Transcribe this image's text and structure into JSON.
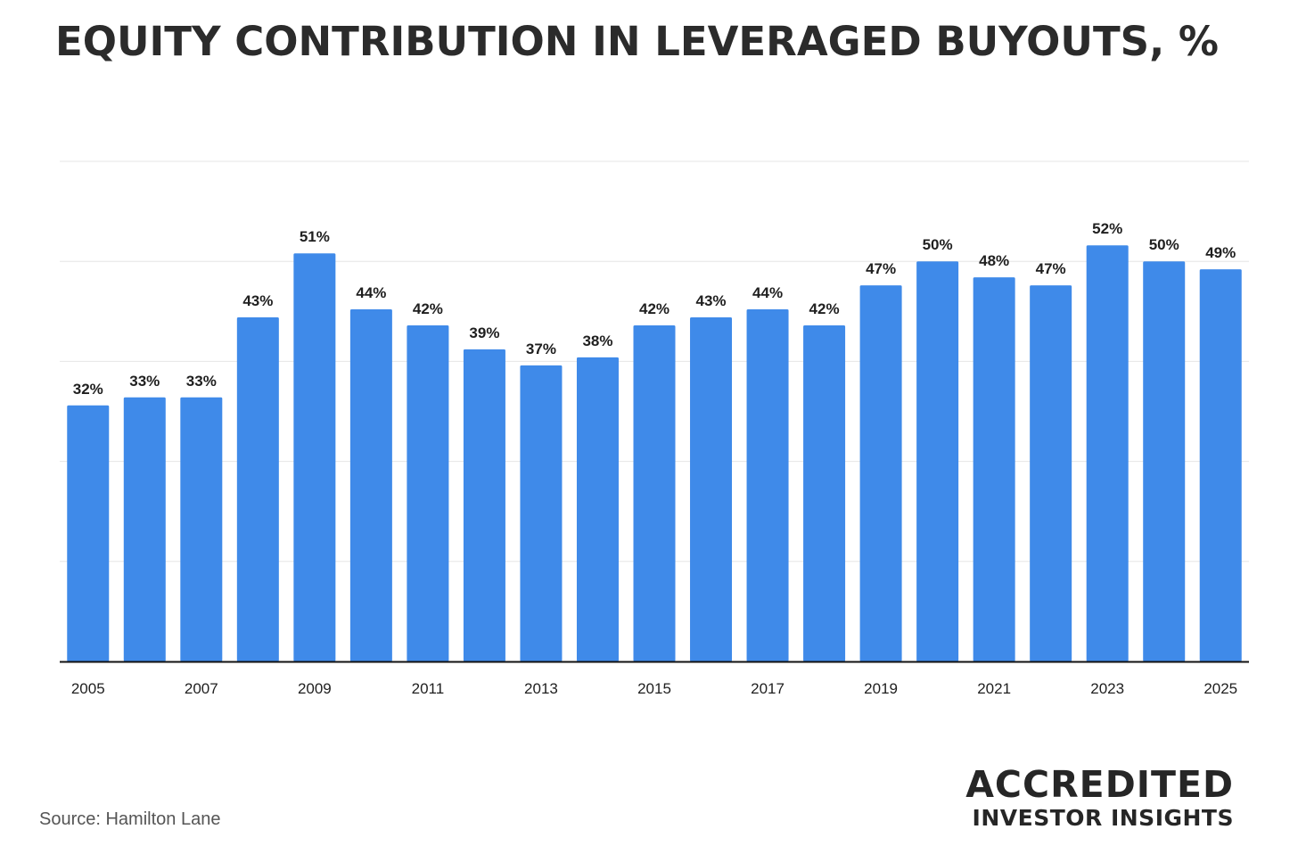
{
  "chart_data": {
    "type": "bar",
    "title": "EQUITY CONTRIBUTION IN LEVERAGED BUYOUTS, %",
    "categories": [
      "2005",
      "2006",
      "2007",
      "2008",
      "2009",
      "2010",
      "2011",
      "2012",
      "2013",
      "2014",
      "2015",
      "2016",
      "2017",
      "2018",
      "2019",
      "2020",
      "2021",
      "2022",
      "2023",
      "2024",
      "2025"
    ],
    "values": [
      32,
      33,
      33,
      43,
      51,
      44,
      42,
      39,
      37,
      38,
      42,
      43,
      44,
      42,
      47,
      50,
      48,
      47,
      52,
      50,
      49
    ],
    "value_labels": [
      "32%",
      "33%",
      "33%",
      "43%",
      "51%",
      "44%",
      "42%",
      "39%",
      "37%",
      "38%",
      "42%",
      "43%",
      "44%",
      "42%",
      "47%",
      "50%",
      "48%",
      "47%",
      "52%",
      "50%",
      "49%"
    ],
    "tick_labels": [
      "2005",
      "2007",
      "2009",
      "2011",
      "2013",
      "2015",
      "2017",
      "2019",
      "2021",
      "2023",
      "2025"
    ],
    "xlabel": "",
    "ylabel": "",
    "ylim": [
      0,
      62.5
    ],
    "grid": true,
    "bar_color": "#3f8ae9"
  },
  "source": "Source: Hamilton Lane",
  "brand": {
    "line1": "ACCREDITED",
    "line2": "INVESTOR INSIGHTS"
  }
}
